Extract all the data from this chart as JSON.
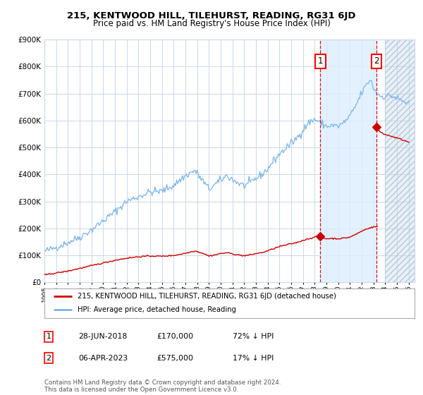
{
  "title": "215, KENTWOOD HILL, TILEHURST, READING, RG31 6JD",
  "subtitle": "Price paid vs. HM Land Registry's House Price Index (HPI)",
  "x_start_year": 1995,
  "x_end_year": 2026,
  "ylim": [
    0,
    900000
  ],
  "yticks": [
    0,
    100000,
    200000,
    300000,
    400000,
    500000,
    600000,
    700000,
    800000,
    900000
  ],
  "ytick_labels": [
    "£0",
    "£100K",
    "£200K",
    "£300K",
    "£400K",
    "£500K",
    "£600K",
    "£700K",
    "£800K",
    "£900K"
  ],
  "sale1_date": 2018.49,
  "sale1_price": 170000,
  "sale1_label": "1",
  "sale1_date_str": "28-JUN-2018",
  "sale1_price_str": "£170,000",
  "sale1_hpi_str": "72% ↓ HPI",
  "sale2_date": 2023.26,
  "sale2_price": 575000,
  "sale2_label": "2",
  "sale2_date_str": "06-APR-2023",
  "sale2_price_str": "£575,000",
  "sale2_hpi_str": "17% ↓ HPI",
  "hpi_line_color": "#7ab4e8",
  "price_line_color": "#cc0000",
  "background_color": "#ffffff",
  "grid_color": "#c8d8e8",
  "highlight_color": "#ddeeff",
  "legend_label1": "215, KENTWOOD HILL, TILEHURST, READING, RG31 6JD (detached house)",
  "legend_label2": "HPI: Average price, detached house, Reading",
  "footnote": "Contains HM Land Registry data © Crown copyright and database right 2024.\nThis data is licensed under the Open Government Licence v3.0."
}
